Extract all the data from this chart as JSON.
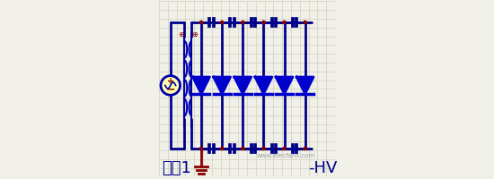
{
  "bg_color": "#f0f0e8",
  "grid_color": "#d0d0c0",
  "wire_color": "#00008B",
  "diode_color": "#0000CC",
  "cap_color": "#00008B",
  "node_color": "#8B0000",
  "transformer_color": "#0000AA",
  "source_color": "#8B8B00",
  "source_fill": "#FFFFAA",
  "ground_color": "#8B0000",
  "text_color": "#00008B",
  "label1": "电路1",
  "label2": "-HV",
  "label_fontsize": 13,
  "wire_lw": 2.0,
  "cap_lw": 2.2,
  "diode_size": 0.055,
  "node_r": 0.008,
  "num_stages": 6
}
